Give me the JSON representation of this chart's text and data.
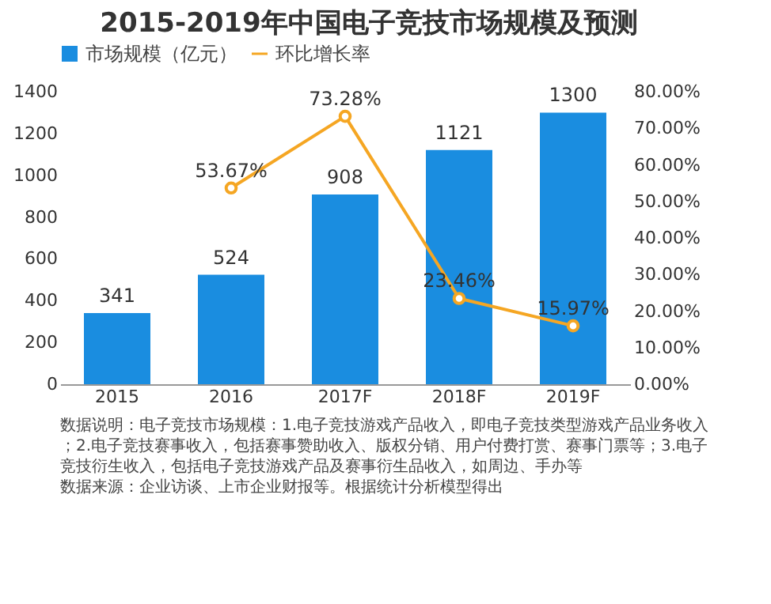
{
  "chart_data": {
    "type": "bar",
    "title": "2015-2019年中国电子竞技市场规模及预测",
    "categories": [
      "2015",
      "2016",
      "2017F",
      "2018F",
      "2019F"
    ],
    "series": [
      {
        "name": "市场规模（亿元）",
        "color": "#1a8de0",
        "values": [
          341,
          524,
          908,
          1121,
          1300
        ],
        "value_labels": [
          "341",
          "524",
          "908",
          "1121",
          "1300"
        ]
      },
      {
        "name": "环比增长率",
        "type": "line",
        "axis": "y2",
        "color": "#f5a623",
        "values": [
          null,
          53.67,
          73.28,
          23.46,
          15.97
        ],
        "value_labels": [
          null,
          "53.67%",
          "73.28%",
          "23.46%",
          "15.97%"
        ]
      }
    ],
    "ylim": [
      0,
      1400
    ],
    "yticks": [
      0,
      200,
      400,
      600,
      800,
      1000,
      1200,
      1400
    ],
    "y2lim": [
      0,
      80
    ],
    "y2ticks": [
      {
        "value": 0,
        "label": "0.00%"
      },
      {
        "value": 10,
        "label": "10.00%"
      },
      {
        "value": 20,
        "label": "20.00%"
      },
      {
        "value": 30,
        "label": "30.00%"
      },
      {
        "value": 40,
        "label": "40.00%"
      },
      {
        "value": 50,
        "label": "50.00%"
      },
      {
        "value": 60,
        "label": "60.00%"
      },
      {
        "value": 70,
        "label": "70.00%"
      },
      {
        "value": 80,
        "label": "80.00%"
      }
    ],
    "legend": "top",
    "marker": "circle",
    "annotations": [
      "数据说明：电子竞技市场规模：1.电子竞技游戏产品收入，即电子竞技类型游戏产品业务收入；2.电子竞技赛事收入，包括赛事赞助收入、版权分销、用户付费打赏、赛事门票等；3.电子竞技衍生收入，包括电子竞技游戏产品及赛事衍生品收入，如周边、手办等",
      "数据来源：企业访谈、上市企业财报等。根据统计分析模型得出"
    ]
  }
}
